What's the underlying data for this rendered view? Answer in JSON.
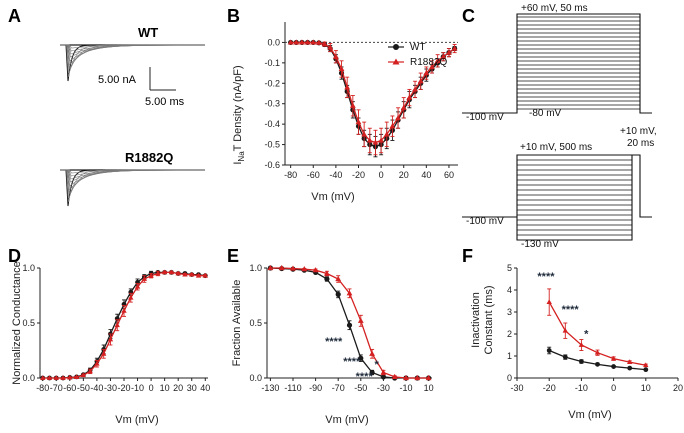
{
  "colors": {
    "wt": "#1a1a1a",
    "mut": "#d42020",
    "grey": "#888888"
  },
  "panels": [
    {
      "letter": "A",
      "cx": 14
    },
    {
      "letter": "B",
      "cx": 233
    },
    {
      "letter": "C",
      "cx": 458
    },
    {
      "letter": "D",
      "cx": 14
    },
    {
      "letter": "E",
      "cx": 233
    },
    {
      "letter": "F",
      "cx": 458
    }
  ],
  "panelA": {
    "wt_label": "WT",
    "mut_label": "R1882Q",
    "scale_current": "5.00 nA",
    "scale_time": "5.00 ms"
  },
  "panelC": {
    "top_step": "+60 mV, 50 ms",
    "top_hold": "-100 mV",
    "top_base": "-80 mV",
    "bot_step": "+10 mV, 500 ms",
    "bot_test": "+10 mV,\n20 ms",
    "bot_hold": "-100 mV",
    "bot_base": "-130 mV"
  },
  "chart_data": [
    {
      "panel": "B",
      "type": "line",
      "ylabel": "INaT Density (nA/pF)",
      "ylabel_main": "I",
      "ylabel_sub": "Na",
      "ylabel_rest": "T Density (nA/pF)",
      "xlabel": "Vm (mV)",
      "xlim": [
        -85,
        68
      ],
      "ylim": [
        -0.6,
        0.1
      ],
      "xticks": [
        -80,
        -60,
        -40,
        -20,
        0,
        20,
        40,
        60
      ],
      "yticks": [
        0.0,
        -0.1,
        -0.2,
        -0.3,
        -0.4,
        -0.5,
        -0.6
      ],
      "yticklabels": [
        "0.0",
        "-0.1",
        "-0.2",
        "-0.3",
        "-0.4",
        "-0.5",
        "-0.6"
      ],
      "legend": "top-right",
      "zero_line": true,
      "series": [
        {
          "name": "WT",
          "marker": "circle",
          "color": "wt",
          "x": [
            -80,
            -75,
            -70,
            -65,
            -60,
            -55,
            -50,
            -45,
            -40,
            -35,
            -30,
            -25,
            -20,
            -15,
            -10,
            -5,
            0,
            5,
            10,
            15,
            20,
            25,
            30,
            35,
            40,
            45,
            50,
            55,
            60,
            65
          ],
          "y": [
            0,
            0,
            0,
            0,
            0,
            -0.002,
            -0.01,
            -0.03,
            -0.08,
            -0.15,
            -0.24,
            -0.33,
            -0.41,
            -0.47,
            -0.5,
            -0.51,
            -0.5,
            -0.47,
            -0.43,
            -0.38,
            -0.33,
            -0.28,
            -0.24,
            -0.2,
            -0.16,
            -0.13,
            -0.1,
            -0.07,
            -0.05,
            -0.03
          ],
          "err": [
            0,
            0,
            0,
            0,
            0,
            0.003,
            0.01,
            0.015,
            0.02,
            0.03,
            0.03,
            0.04,
            0.04,
            0.04,
            0.05,
            0.05,
            0.05,
            0.05,
            0.05,
            0.04,
            0.04,
            0.04,
            0.03,
            0.03,
            0.03,
            0.02,
            0.02,
            0.02,
            0.02,
            0.01
          ]
        },
        {
          "name": "R1882Q",
          "marker": "triangle",
          "color": "mut",
          "x": [
            -80,
            -75,
            -70,
            -65,
            -60,
            -55,
            -50,
            -45,
            -40,
            -35,
            -30,
            -25,
            -20,
            -15,
            -10,
            -5,
            0,
            5,
            10,
            15,
            20,
            25,
            30,
            35,
            40,
            45,
            50,
            55,
            60,
            65
          ],
          "y": [
            0,
            0,
            0,
            0,
            0,
            -0.002,
            -0.008,
            -0.025,
            -0.07,
            -0.13,
            -0.22,
            -0.31,
            -0.39,
            -0.45,
            -0.48,
            -0.49,
            -0.48,
            -0.45,
            -0.41,
            -0.37,
            -0.32,
            -0.27,
            -0.23,
            -0.19,
            -0.15,
            -0.12,
            -0.09,
            -0.07,
            -0.05,
            -0.03
          ],
          "err": [
            0,
            0,
            0,
            0,
            0,
            0.003,
            0.01,
            0.02,
            0.03,
            0.04,
            0.05,
            0.05,
            0.06,
            0.06,
            0.06,
            0.06,
            0.06,
            0.06,
            0.05,
            0.05,
            0.05,
            0.04,
            0.04,
            0.04,
            0.03,
            0.03,
            0.03,
            0.02,
            0.02,
            0.02
          ]
        }
      ]
    },
    {
      "panel": "D",
      "type": "line",
      "ylabel": "Normalized Conductance",
      "xlabel": "Vm (mV)",
      "xlim": [
        -82,
        42
      ],
      "ylim": [
        0,
        1.0
      ],
      "xticks": [
        -80,
        -70,
        -60,
        -50,
        -40,
        -30,
        -20,
        -10,
        0,
        10,
        20,
        30,
        40
      ],
      "yticks": [
        0.0,
        0.5,
        1.0
      ],
      "yticklabels": [
        "0.0",
        "0.5",
        "1.0"
      ],
      "series": [
        {
          "name": "",
          "marker": "circle",
          "color": "wt",
          "x": [
            -80,
            -75,
            -70,
            -65,
            -60,
            -55,
            -50,
            -45,
            -40,
            -35,
            -30,
            -25,
            -20,
            -15,
            -10,
            -5,
            0,
            5,
            10,
            15,
            20,
            25,
            30,
            35,
            40
          ],
          "y": [
            0,
            0,
            0,
            0,
            0.005,
            0.01,
            0.03,
            0.07,
            0.15,
            0.26,
            0.4,
            0.54,
            0.67,
            0.78,
            0.87,
            0.92,
            0.95,
            0.96,
            0.96,
            0.96,
            0.95,
            0.95,
            0.94,
            0.94,
            0.93
          ],
          "err": [
            0,
            0,
            0,
            0,
            0.003,
            0.005,
            0.01,
            0.02,
            0.03,
            0.04,
            0.04,
            0.04,
            0.04,
            0.03,
            0.03,
            0.02,
            0.02,
            0.01,
            0.01,
            0.01,
            0.01,
            0.01,
            0.01,
            0.01,
            0.01
          ]
        },
        {
          "name": "",
          "marker": "triangle",
          "color": "mut",
          "x": [
            -80,
            -75,
            -70,
            -65,
            -60,
            -55,
            -50,
            -45,
            -40,
            -35,
            -30,
            -25,
            -20,
            -15,
            -10,
            -5,
            0,
            5,
            10,
            15,
            20,
            25,
            30,
            35,
            40
          ],
          "y": [
            0,
            0,
            0,
            0,
            0.004,
            0.008,
            0.025,
            0.06,
            0.13,
            0.22,
            0.35,
            0.48,
            0.61,
            0.73,
            0.83,
            0.9,
            0.93,
            0.95,
            0.96,
            0.96,
            0.95,
            0.94,
            0.94,
            0.93,
            0.93
          ],
          "err": [
            0,
            0,
            0,
            0,
            0.003,
            0.005,
            0.01,
            0.02,
            0.03,
            0.04,
            0.05,
            0.05,
            0.05,
            0.04,
            0.03,
            0.03,
            0.02,
            0.02,
            0.01,
            0.01,
            0.01,
            0.01,
            0.01,
            0.01,
            0.01
          ]
        }
      ]
    },
    {
      "panel": "E",
      "type": "line",
      "ylabel": "Fraction Available",
      "xlabel": "Vm (mV)",
      "xlim": [
        -133,
        13
      ],
      "ylim": [
        0,
        1.0
      ],
      "xticks": [
        -130,
        -110,
        -90,
        -70,
        -50,
        -30,
        -10,
        10
      ],
      "yticks": [
        0.0,
        0.5,
        1.0
      ],
      "yticklabels": [
        "0.0",
        "0.5",
        "1.0"
      ],
      "series": [
        {
          "name": "",
          "marker": "circle",
          "color": "wt",
          "x": [
            -130,
            -120,
            -110,
            -100,
            -90,
            -80,
            -70,
            -60,
            -50,
            -40,
            -30,
            -20,
            -10,
            0,
            10
          ],
          "y": [
            1.0,
            0.995,
            0.99,
            0.98,
            0.96,
            0.9,
            0.76,
            0.48,
            0.18,
            0.05,
            0.01,
            0.0,
            0.0,
            0.0,
            0.0
          ],
          "err": [
            0,
            0,
            0,
            0.005,
            0.01,
            0.02,
            0.03,
            0.04,
            0.03,
            0.02,
            0.01,
            0,
            0,
            0,
            0
          ]
        },
        {
          "name": "",
          "marker": "triangle",
          "color": "mut",
          "x": [
            -130,
            -120,
            -110,
            -100,
            -90,
            -80,
            -70,
            -60,
            -50,
            -40,
            -30,
            -20,
            -10,
            0,
            10
          ],
          "y": [
            1.0,
            1.0,
            0.995,
            0.99,
            0.98,
            0.95,
            0.9,
            0.77,
            0.52,
            0.22,
            0.05,
            0.01,
            0.0,
            0.0,
            0.0
          ],
          "err": [
            0,
            0,
            0,
            0.005,
            0.01,
            0.02,
            0.03,
            0.04,
            0.05,
            0.04,
            0.02,
            0.01,
            0,
            0,
            0
          ]
        }
      ],
      "annotations": [
        {
          "text": "****",
          "x": -74,
          "y": 0.3
        },
        {
          "text": "****",
          "x": -58,
          "y": 0.12
        },
        {
          "text": "****",
          "x": -47,
          "y": -0.02
        },
        {
          "text": "*",
          "x": -36,
          "y": 0.09
        }
      ]
    },
    {
      "panel": "F",
      "type": "line",
      "ylabel": "Inactivation Constant (ms)",
      "ylabel_lines": [
        "Inactivation",
        "Constant (ms)"
      ],
      "xlabel": "Vm (mV)",
      "xlim": [
        -30,
        20
      ],
      "ylim": [
        0,
        5
      ],
      "xticks": [
        -30,
        -20,
        -10,
        0,
        10,
        20
      ],
      "yticks": [
        0,
        1,
        2,
        3,
        4,
        5
      ],
      "yticklabels": [
        "0",
        "1",
        "2",
        "3",
        "4",
        "5"
      ],
      "series": [
        {
          "name": "",
          "marker": "circle",
          "color": "wt",
          "x": [
            -20,
            -15,
            -10,
            -5,
            0,
            5,
            10
          ],
          "y": [
            1.25,
            0.95,
            0.75,
            0.62,
            0.52,
            0.45,
            0.38
          ],
          "err": [
            0.15,
            0.1,
            0.08,
            0.05,
            0.04,
            0.03,
            0.03
          ]
        },
        {
          "name": "",
          "marker": "triangle",
          "color": "mut",
          "x": [
            -20,
            -15,
            -10,
            -5,
            0,
            5,
            10
          ],
          "y": [
            3.45,
            2.15,
            1.5,
            1.15,
            0.88,
            0.72,
            0.58
          ],
          "err": [
            0.6,
            0.35,
            0.25,
            0.12,
            0.08,
            0.06,
            0.05
          ]
        }
      ],
      "annotations": [
        {
          "text": "****",
          "x": -21,
          "y": 4.45
        },
        {
          "text": "****",
          "x": -13.5,
          "y": 2.95
        },
        {
          "text": "*",
          "x": -8.5,
          "y": 1.85
        }
      ]
    }
  ]
}
